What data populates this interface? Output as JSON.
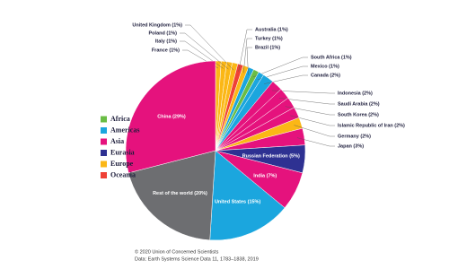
{
  "chart_data": {
    "type": "pie",
    "categories": [
      "France",
      "Italy",
      "Poland",
      "United Kingdom",
      "Australia",
      "Turkey",
      "Brazil",
      "South Africa",
      "Mexico",
      "Canada",
      "Indonesia",
      "Saudi Arabia",
      "South Korea",
      "Islamic Republic of Iran",
      "Germany",
      "Japan",
      "Russian Federation",
      "India",
      "United States",
      "Rest of the world",
      "China"
    ],
    "values": [
      1,
      1,
      1,
      1,
      1,
      1,
      1,
      1,
      1,
      2,
      2,
      2,
      2,
      2,
      2,
      3,
      5,
      7,
      15,
      20,
      29
    ],
    "value_labels": [
      "France (1%)",
      "Italy (1%)",
      "Poland (1%)",
      "United Kingdom (1%)",
      "Australia (1%)",
      "Turkey (1%)",
      "Brazil (1%)",
      "South Africa (1%)",
      "Mexico (1%)",
      "Canada (2%)",
      "Indonesia (2%)",
      "Saudi Arabia (2%)",
      "South Korea (2%)",
      "Islamic Republic of Iran (2%)",
      "Germany (2%)",
      "Japan (3%)",
      "Russian Federation (5%)",
      "India (7%)",
      "United States (15%)",
      "Rest of the world (20%)",
      "China (29%)"
    ],
    "colors": [
      "#fbb716",
      "#fbb716",
      "#fbb716",
      "#fbb716",
      "#ef4136",
      "#fbb716",
      "#1ba6de",
      "#6abd45",
      "#1ba6de",
      "#1ba6de",
      "#e5127d",
      "#e5127d",
      "#e5127d",
      "#e5127d",
      "#fbb716",
      "#e5127d",
      "#2e3192",
      "#e5127d",
      "#1ba6de",
      "#6d6e71",
      "#e5127d"
    ],
    "legend": [
      {
        "name": "Africa",
        "color": "#6abd45"
      },
      {
        "name": "Americas",
        "color": "#1ba6de"
      },
      {
        "name": "Asia",
        "color": "#e5127d"
      },
      {
        "name": "Eurasia",
        "color": "#2e3192"
      },
      {
        "name": "Europe",
        "color": "#fbb716"
      },
      {
        "name": "Oceania",
        "color": "#ef4136"
      }
    ]
  },
  "footer": [
    "© 2020 Union of Concerned Scientists",
    "Data: Earth Systems Science Data 11, 1783–1838, 2019"
  ]
}
